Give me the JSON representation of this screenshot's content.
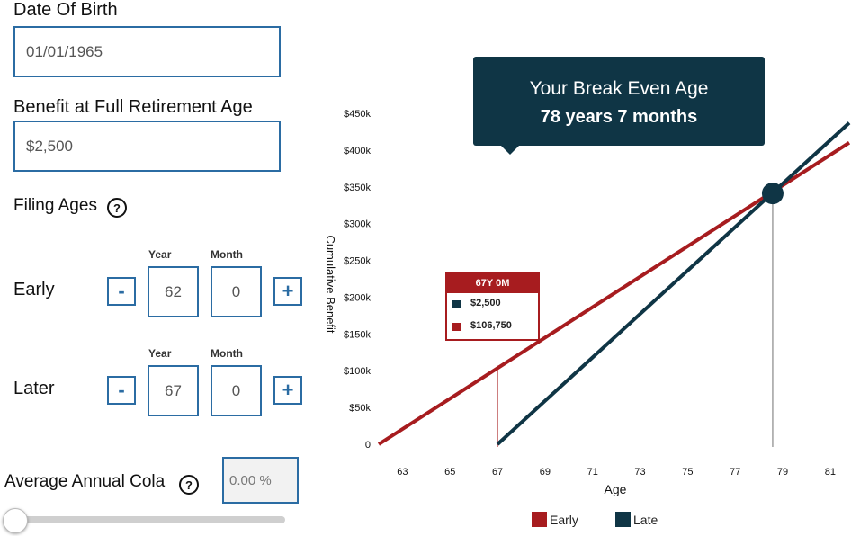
{
  "form": {
    "dob": {
      "label": "Date Of Birth",
      "value": "01/01/1965"
    },
    "benefit": {
      "label": "Benefit at Full Retirement Age",
      "value": "$2,500"
    },
    "filing": {
      "label": "Filing Ages",
      "help": "?",
      "year_header": "Year",
      "month_header": "Month",
      "minus": "-",
      "plus": "+",
      "early": {
        "label": "Early",
        "year": "62",
        "month": "0"
      },
      "later": {
        "label": "Later",
        "year": "67",
        "month": "0"
      }
    },
    "cola": {
      "label": "Average Annual Cola",
      "help": "?",
      "value": "0.00 %",
      "slider_fraction": 0.0
    }
  },
  "callout": {
    "title": "Your Break Even Age",
    "value": "78 years 7 months"
  },
  "tooltip": {
    "header": "67Y 0M",
    "rows": [
      {
        "value": "$2,500",
        "color": "#0f3545"
      },
      {
        "value": "$106,750",
        "color": "#a71c1f"
      }
    ]
  },
  "colors": {
    "early": "#a71c1f",
    "late": "#0f3545",
    "accent": "#2b6ca3"
  },
  "chart_data": {
    "type": "line",
    "xlabel": "Age",
    "ylabel": "Cumulative Benefit",
    "x_ticks": [
      "63",
      "65",
      "67",
      "69",
      "71",
      "73",
      "75",
      "77",
      "79",
      "81"
    ],
    "y_ticks": [
      "0",
      "$50k",
      "$100k",
      "$150k",
      "$200k",
      "$250k",
      "$300k",
      "$350k",
      "$400k",
      "$450k"
    ],
    "xlim": [
      62,
      81.8
    ],
    "ylim": [
      0,
      450000
    ],
    "series": [
      {
        "name": "Early",
        "color": "#a71c1f",
        "points": [
          [
            62,
            0
          ],
          [
            81.8,
            410000
          ]
        ]
      },
      {
        "name": "Late",
        "color": "#0f3545",
        "points": [
          [
            67,
            0
          ],
          [
            81.8,
            437000
          ]
        ]
      }
    ],
    "break_even": {
      "x": 78.58,
      "y": 341000
    },
    "hover_x": 67,
    "hover_y": 106750,
    "legend": [
      "Early",
      "Late"
    ],
    "legend_position": "bottom",
    "grid": false
  }
}
